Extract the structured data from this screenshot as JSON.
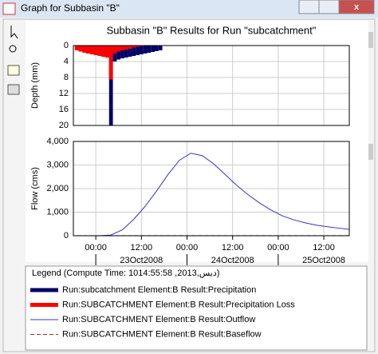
{
  "window": {
    "title": "Graph for Subbasin \"B\"",
    "legend_title": "Legend (Compute Time: 1014:55:58 ,2013,دیس)"
  },
  "chart_data": [
    {
      "type": "bar",
      "title": "Subbasin \"B\" Results for Run \"subcatchment\"",
      "ylabel": "Depth (mm)",
      "inverted": true,
      "ylim": [
        0,
        20
      ],
      "yticks": [
        0,
        4,
        8,
        12,
        16,
        20
      ],
      "grid": true,
      "x": [
        -5,
        -4,
        -3,
        -2,
        -1,
        0,
        1,
        2,
        3,
        4,
        5,
        6,
        7,
        8,
        9,
        10,
        11,
        12,
        13,
        14,
        15,
        16,
        17
      ],
      "series": [
        {
          "name": "Run:subcatchment Element:B Result:Precipitation",
          "color": "#000066",
          "values": [
            1.2,
            1.5,
            1.8,
            2.0,
            2.2,
            2.4,
            2.6,
            2.8,
            3.0,
            20,
            4,
            3.5,
            3.2,
            3.0,
            2.8,
            2.6,
            2.4,
            2.2,
            2.0,
            1.8,
            1.6,
            1.4,
            1.2
          ]
        },
        {
          "name": "Run:SUBCATCHMENT Element:B Result:Precipitation Loss",
          "color": "#ff0000",
          "values": [
            1.2,
            1.5,
            1.8,
            2.0,
            2.2,
            2.4,
            2.6,
            2.8,
            3.0,
            8.5,
            2.0,
            1.5,
            1.2,
            1.0,
            0.8,
            0.5,
            0.3,
            0.2,
            0.1,
            0.1,
            0.1,
            0,
            0
          ]
        }
      ]
    },
    {
      "type": "line",
      "ylabel": "Flow (cms)",
      "ylim": [
        0,
        4000
      ],
      "yticks": [
        0,
        {
          "value": 1000,
          "label": "1,000"
        },
        {
          "value": 2000,
          "label": "2,000"
        },
        {
          "value": 3000,
          "label": "3,000"
        },
        {
          "value": 4000,
          "label": "4,000"
        }
      ],
      "xlim": [
        -5.9,
        66.7
      ],
      "xticks": [
        {
          "value": 0,
          "label": "00:00"
        },
        {
          "value": 12,
          "label": "12:00"
        },
        {
          "value": 24,
          "label": "00:00"
        },
        {
          "value": 36,
          "label": "12:00"
        },
        {
          "value": 48,
          "label": "00:00"
        },
        {
          "value": 60,
          "label": "12:00"
        }
      ],
      "date_ticks": [
        {
          "value": 12,
          "label": "23Oct2008"
        },
        {
          "value": 36,
          "label": "24Oct2008"
        },
        {
          "value": 60,
          "label": "25Oct2008"
        }
      ],
      "grid": true,
      "x": [
        -5,
        -2,
        1,
        4,
        7,
        10,
        13,
        16,
        19,
        22,
        25,
        28,
        31,
        34,
        37,
        40,
        43,
        46,
        49,
        52,
        55,
        58,
        61,
        64,
        66.7
      ],
      "series": [
        {
          "name": "Run:SUBCATCHMENT Element:B Result:Outflow",
          "color": "#3333cc",
          "dash": false,
          "values": [
            0,
            0,
            0,
            30,
            250,
            700,
            1250,
            1900,
            2600,
            3200,
            3500,
            3400,
            3050,
            2600,
            2150,
            1750,
            1400,
            1100,
            850,
            680,
            550,
            450,
            380,
            320,
            270
          ]
        },
        {
          "name": "Run:SUBCATCHMENT Element:B Result:Baseflow",
          "color": "#993333",
          "dash": true,
          "values": [
            5,
            5,
            5,
            5,
            5,
            5,
            5,
            5,
            5,
            5,
            5,
            5,
            5,
            5,
            5,
            5,
            5,
            5,
            5,
            5,
            5,
            5,
            5,
            5,
            5
          ]
        }
      ]
    }
  ]
}
